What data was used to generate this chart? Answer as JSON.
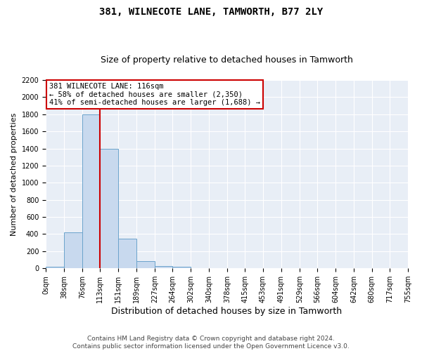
{
  "title": "381, WILNECOTE LANE, TAMWORTH, B77 2LY",
  "subtitle": "Size of property relative to detached houses in Tamworth",
  "xlabel": "Distribution of detached houses by size in Tamworth",
  "ylabel": "Number of detached properties",
  "footer_line1": "Contains HM Land Registry data © Crown copyright and database right 2024.",
  "footer_line2": "Contains public sector information licensed under the Open Government Licence v3.0.",
  "annotation_line1": "381 WILNECOTE LANE: 116sqm",
  "annotation_line2": "← 58% of detached houses are smaller (2,350)",
  "annotation_line3": "41% of semi-detached houses are larger (1,688) →",
  "bin_edges": [
    0,
    38,
    76,
    113,
    151,
    189,
    227,
    264,
    302,
    340,
    378,
    415,
    453,
    491,
    529,
    566,
    604,
    642,
    680,
    717,
    755
  ],
  "bar_heights": [
    15,
    420,
    1800,
    1400,
    350,
    80,
    30,
    15,
    0,
    0,
    0,
    0,
    0,
    0,
    0,
    0,
    0,
    0,
    0,
    0
  ],
  "bar_color": "#c8d9ee",
  "bar_edge_color": "#6ba3cc",
  "vline_color": "#cc0000",
  "vline_x": 113,
  "ylim_max": 2200,
  "yticks": [
    0,
    200,
    400,
    600,
    800,
    1000,
    1200,
    1400,
    1600,
    1800,
    2000,
    2200
  ],
  "bg_color": "#e8eef6",
  "grid_color": "#ffffff",
  "fig_bg_color": "#ffffff",
  "title_fontsize": 10,
  "subtitle_fontsize": 9,
  "xlabel_fontsize": 9,
  "ylabel_fontsize": 8,
  "tick_fontsize": 7,
  "annotation_fontsize": 7.5,
  "footer_fontsize": 6.5
}
